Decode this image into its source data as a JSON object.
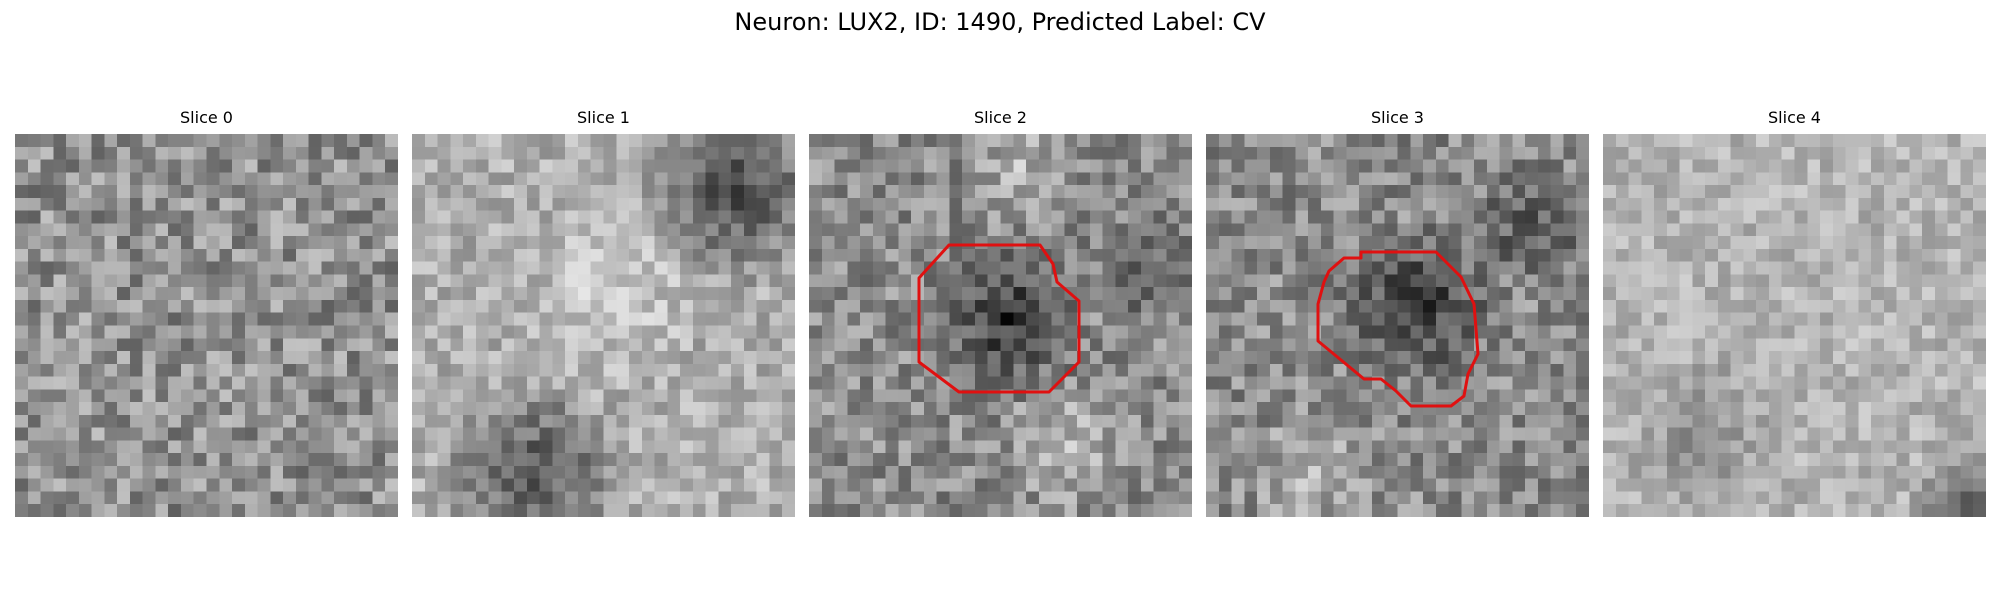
{
  "figure": {
    "title": "Neuron: LUX2, ID: 1490, Predicted Label: CV"
  },
  "outline_color": "#e01010",
  "slices": [
    {
      "label": "Slice 0",
      "has_outline": false,
      "seed": 11,
      "base": 145,
      "contrast": 50
    },
    {
      "label": "Slice 1",
      "has_outline": false,
      "seed": 27,
      "base": 175,
      "contrast": 35
    },
    {
      "label": "Slice 2",
      "has_outline": true,
      "seed": 43,
      "base": 140,
      "contrast": 45
    },
    {
      "label": "Slice 3",
      "has_outline": true,
      "seed": 59,
      "base": 140,
      "contrast": 45
    },
    {
      "label": "Slice 4",
      "has_outline": false,
      "seed": 71,
      "base": 180,
      "contrast": 30
    }
  ]
}
